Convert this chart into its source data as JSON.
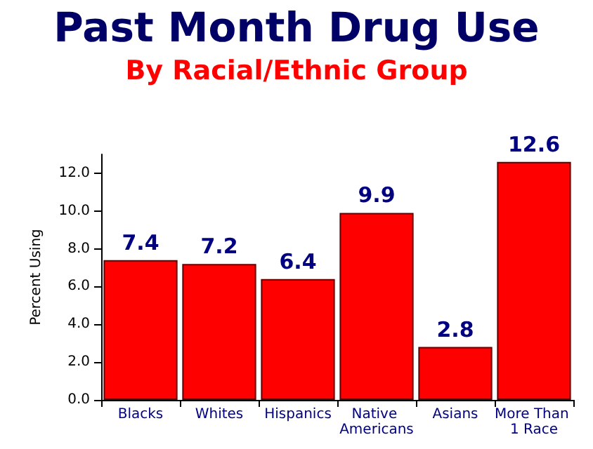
{
  "chart_data": {
    "type": "bar",
    "title": "Past Month Drug Use",
    "subtitle": "By Racial/Ethnic Group",
    "ylabel": "Percent Using",
    "categories": [
      "Blacks",
      "Whites",
      "Hispanics",
      "Native Americans",
      "Asians",
      "More Than 1 Race"
    ],
    "values": [
      7.4,
      7.2,
      6.4,
      9.9,
      2.8,
      12.6
    ],
    "color": "#ff0000",
    "ylim": [
      0,
      13
    ],
    "yticks": [
      {
        "value": 0,
        "label": "0.0"
      },
      {
        "value": 2,
        "label": "2.0"
      },
      {
        "value": 4,
        "label": "4.0"
      },
      {
        "value": 6,
        "label": "6.0"
      },
      {
        "value": 8,
        "label": "8.0"
      },
      {
        "value": 10,
        "label": "10.0"
      },
      {
        "value": 12,
        "label": "12.0"
      }
    ],
    "data_labels": true
  }
}
